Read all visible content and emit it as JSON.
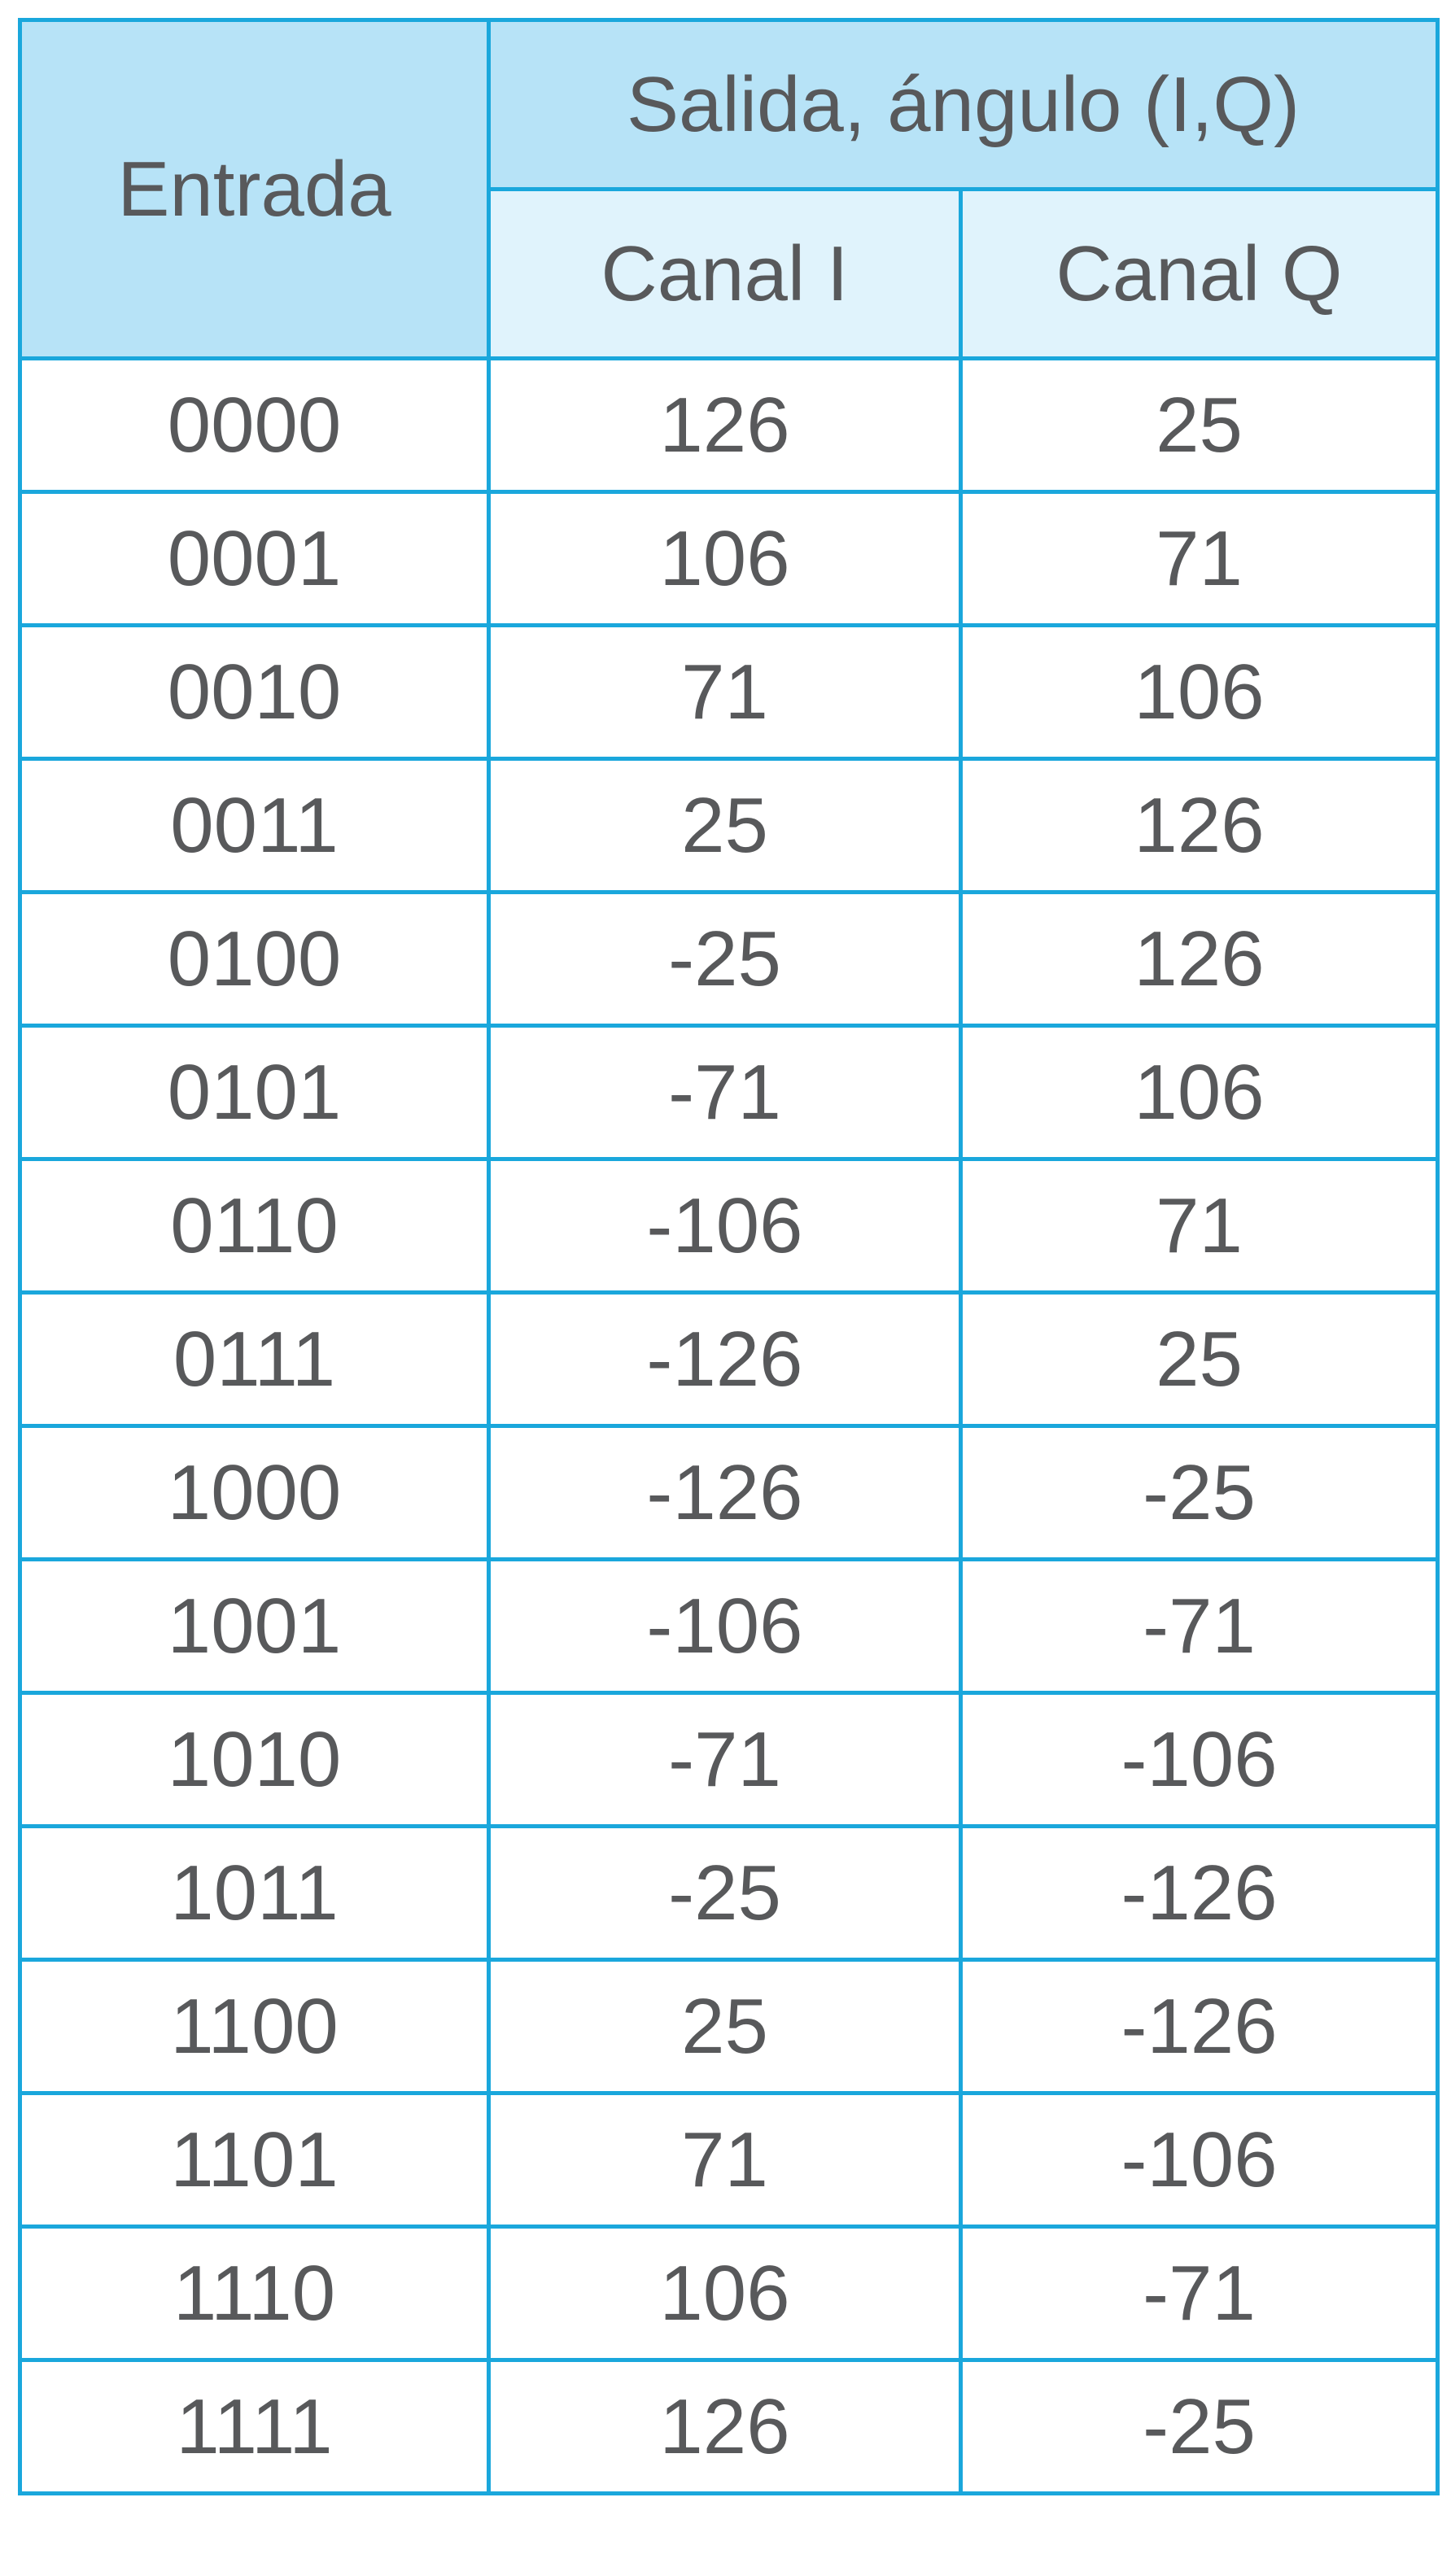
{
  "header": {
    "entrada": "Entrada",
    "salida": "Salida, ángulo (I,Q)",
    "canal_i": "Canal I",
    "canal_q": "Canal Q"
  },
  "rows": [
    {
      "entrada": "0000",
      "i": "126",
      "q": "25"
    },
    {
      "entrada": "0001",
      "i": "106",
      "q": "71"
    },
    {
      "entrada": "0010",
      "i": "71",
      "q": "106"
    },
    {
      "entrada": "0011",
      "i": "25",
      "q": "126"
    },
    {
      "entrada": "0100",
      "i": "-25",
      "q": "126"
    },
    {
      "entrada": "0101",
      "i": "-71",
      "q": "106"
    },
    {
      "entrada": "0110",
      "i": "-106",
      "q": "71"
    },
    {
      "entrada": "0111",
      "i": "-126",
      "q": "25"
    },
    {
      "entrada": "1000",
      "i": "-126",
      "q": "-25"
    },
    {
      "entrada": "1001",
      "i": "-106",
      "q": "-71"
    },
    {
      "entrada": "1010",
      "i": "-71",
      "q": "-106"
    },
    {
      "entrada": "1011",
      "i": "-25",
      "q": "-126"
    },
    {
      "entrada": "1100",
      "i": "25",
      "q": "-126"
    },
    {
      "entrada": "1101",
      "i": "71",
      "q": "-106"
    },
    {
      "entrada": "1110",
      "i": "106",
      "q": "-71"
    },
    {
      "entrada": "1111",
      "i": "126",
      "q": "-25"
    }
  ],
  "colors": {
    "border": "#1aa7dc",
    "header_bg": "#b7e3f7",
    "subheader_bg": "#e0f3fc",
    "text": "#58595b"
  }
}
